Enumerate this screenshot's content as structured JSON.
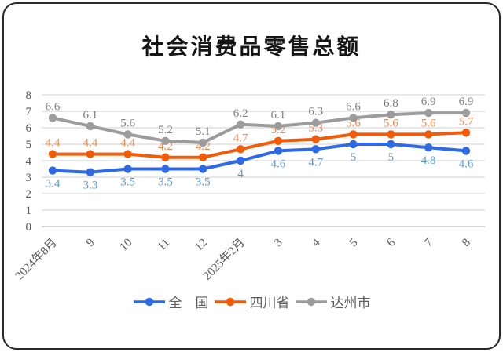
{
  "title": "社会消费品零售总额",
  "chart_data": {
    "type": "line",
    "categories": [
      "2024年8月",
      "9",
      "10",
      "11",
      "12",
      "2025年2月",
      "3",
      "4",
      "5",
      "6",
      "7",
      "8"
    ],
    "series": [
      {
        "key": "national",
        "name": "全　国",
        "values": [
          3.4,
          3.3,
          3.5,
          3.5,
          3.5,
          4,
          4.6,
          4.7,
          5,
          5,
          4.8,
          4.6
        ],
        "color": "#2e6ae6",
        "label_color": "#5b9bd5",
        "label_position": "below"
      },
      {
        "key": "sichuan",
        "name": "四川省",
        "values": [
          4.4,
          4.4,
          4.4,
          4.2,
          4.2,
          4.7,
          5.2,
          5.3,
          5.6,
          5.6,
          5.6,
          5.7
        ],
        "color": "#f25c09",
        "label_color": "#f0884e",
        "label_position": "above"
      },
      {
        "key": "dazhou",
        "name": "达州市",
        "values": [
          6.6,
          6.1,
          5.6,
          5.2,
          5.1,
          6.2,
          6.1,
          6.3,
          6.6,
          6.8,
          6.9,
          6.9
        ],
        "color": "#9c9c9c",
        "label_color": "#7d7d7d",
        "label_position": "above"
      }
    ],
    "ylim": [
      0,
      8
    ],
    "y_ticks": [
      0,
      1,
      2,
      3,
      4,
      5,
      6,
      7,
      8
    ],
    "grid": true,
    "legend_position": "bottom"
  },
  "axis": {
    "tick_color": "#595959",
    "grid_color": "#d9d9d9",
    "baseline_color": "#bdbdbd"
  }
}
